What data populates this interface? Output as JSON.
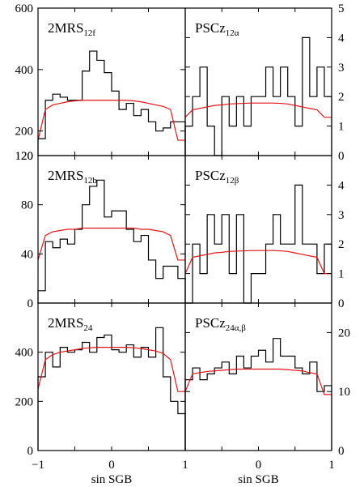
{
  "chart_data": {
    "type": "line",
    "xlabel": "sin SGB",
    "x_ticks": [
      "−1",
      "0",
      "1"
    ],
    "xlim": [
      -1,
      1
    ],
    "bin_edges": [
      -1.0,
      -0.9,
      -0.8,
      -0.7,
      -0.6,
      -0.5,
      -0.4,
      -0.3,
      -0.2,
      -0.1,
      0.0,
      0.1,
      0.2,
      0.3,
      0.4,
      0.5,
      0.6,
      0.7,
      0.8,
      0.9,
      1.0
    ],
    "model_x": [
      -1.0,
      -0.9,
      -0.8,
      -0.7,
      -0.6,
      -0.5,
      -0.4,
      -0.3,
      -0.2,
      -0.1,
      0.0,
      0.1,
      0.2,
      0.3,
      0.4,
      0.5,
      0.6,
      0.7,
      0.8,
      0.9,
      1.0
    ],
    "panels": [
      {
        "id": "r0c0",
        "label_main": "2MRS",
        "label_sub": "12f",
        "ylim": [
          120,
          600
        ],
        "y_ticks": [
          {
            "v": 200,
            "t": "200"
          },
          {
            "v": 400,
            "t": "400"
          },
          {
            "v": 600,
            "t": "600"
          }
        ],
        "y_tick_side": "left",
        "bottom_tick_label": "120",
        "histogram": [
          175,
          300,
          320,
          310,
          300,
          300,
          395,
          460,
          430,
          390,
          330,
          270,
          290,
          250,
          270,
          230,
          200,
          210,
          230,
          230
        ],
        "model": [
          170,
          270,
          285,
          290,
          295,
          298,
          300,
          300,
          300,
          300,
          300,
          300,
          300,
          298,
          295,
          290,
          285,
          280,
          270,
          170,
          170
        ]
      },
      {
        "id": "r0c1",
        "label_main": "PSCz",
        "label_sub": "12α",
        "ylim": [
          0,
          5
        ],
        "y_ticks": [
          {
            "v": 1,
            "t": "1"
          },
          {
            "v": 2,
            "t": "2"
          },
          {
            "v": 3,
            "t": "3"
          },
          {
            "v": 4,
            "t": "4"
          },
          {
            "v": 5,
            "t": "5"
          }
        ],
        "y_tick_side": "right",
        "bottom_tick_label": "0",
        "histogram": [
          1,
          2,
          3,
          1,
          0,
          2,
          1,
          2,
          1,
          2,
          2,
          3,
          2,
          3,
          2,
          1,
          4,
          2,
          3,
          2
        ],
        "model": [
          1.3,
          1.55,
          1.6,
          1.65,
          1.7,
          1.72,
          1.75,
          1.76,
          1.77,
          1.78,
          1.78,
          1.78,
          1.78,
          1.77,
          1.75,
          1.7,
          1.65,
          1.6,
          1.55,
          1.3,
          1.3
        ]
      },
      {
        "id": "r1c0",
        "label_main": "2MRS",
        "label_sub": "12b",
        "ylim": [
          0,
          120
        ],
        "y_ticks": [
          {
            "v": 40,
            "t": "40"
          },
          {
            "v": 80,
            "t": "80"
          },
          {
            "v": 120,
            "t": "120"
          }
        ],
        "y_tick_side": "left",
        "bottom_tick_label": "0",
        "histogram": [
          10,
          50,
          45,
          52,
          48,
          60,
          80,
          95,
          100,
          70,
          75,
          75,
          60,
          50,
          55,
          35,
          20,
          30,
          30,
          20
        ],
        "model": [
          35,
          55,
          58,
          59,
          60,
          60,
          61,
          61,
          61,
          61,
          61,
          61,
          61,
          61,
          60,
          60,
          59,
          58,
          55,
          35,
          35
        ]
      },
      {
        "id": "r1c1",
        "label_main": "PSCz",
        "label_sub": "12β",
        "ylim": [
          0,
          5
        ],
        "y_ticks": [
          {
            "v": 1,
            "t": "1"
          },
          {
            "v": 2,
            "t": "2"
          },
          {
            "v": 3,
            "t": "3"
          },
          {
            "v": 4,
            "t": "4"
          }
        ],
        "y_tick_side": "right",
        "bottom_tick_label": "0",
        "histogram": [
          0,
          2,
          1,
          3,
          2,
          3,
          1,
          3,
          0,
          1,
          1,
          2,
          3,
          2,
          2,
          4,
          2,
          2,
          1,
          2
        ],
        "model": [
          1.0,
          1.55,
          1.6,
          1.65,
          1.7,
          1.72,
          1.75,
          1.76,
          1.77,
          1.78,
          1.78,
          1.78,
          1.78,
          1.77,
          1.75,
          1.7,
          1.65,
          1.6,
          1.55,
          1.0,
          1.0
        ]
      },
      {
        "id": "r2c0",
        "label_main": "2MRS",
        "label_sub": "24",
        "ylim": [
          0,
          600
        ],
        "y_ticks": [
          {
            "v": 0,
            "t": "0"
          },
          {
            "v": 200,
            "t": "200"
          },
          {
            "v": 400,
            "t": "400"
          }
        ],
        "y_tick_side": "left",
        "bottom_tick_label": "",
        "histogram": [
          300,
          400,
          340,
          420,
          400,
          410,
          440,
          400,
          460,
          470,
          410,
          400,
          430,
          380,
          420,
          380,
          500,
          300,
          200,
          150
        ],
        "model": [
          250,
          370,
          390,
          400,
          405,
          410,
          415,
          418,
          420,
          420,
          420,
          420,
          420,
          418,
          415,
          410,
          405,
          395,
          370,
          240,
          240
        ]
      },
      {
        "id": "r2c1",
        "label_main": "PSCz",
        "label_sub": "24α,β",
        "ylim": [
          0,
          25
        ],
        "y_ticks": [
          {
            "v": 0,
            "t": "0"
          },
          {
            "v": 10,
            "t": "10"
          },
          {
            "v": 20,
            "t": "20"
          }
        ],
        "y_tick_side": "right",
        "bottom_tick_label": "",
        "histogram": [
          12,
          14,
          12,
          13,
          14,
          15,
          13,
          16,
          14,
          16,
          17,
          15,
          19,
          16,
          16,
          14,
          13,
          15,
          10,
          11
        ],
        "model": [
          10,
          13,
          13.2,
          13.4,
          13.5,
          13.6,
          13.7,
          13.8,
          13.8,
          13.8,
          13.8,
          13.8,
          13.8,
          13.8,
          13.7,
          13.6,
          13.5,
          13.2,
          13,
          9.5,
          9.5
        ]
      }
    ]
  }
}
